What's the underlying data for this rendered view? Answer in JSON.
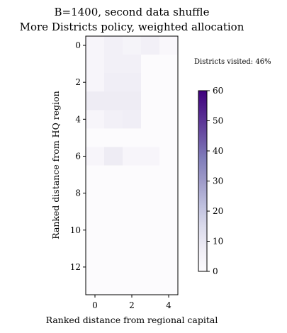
{
  "chart_data": {
    "type": "heatmap",
    "title": "B=1400, second data shuffle",
    "subtitle": "More Districts policy, weighted allocation",
    "xlabel": "Ranked distance from regional capital",
    "ylabel": "Ranked distance from HQ region",
    "x_ticks": [
      0,
      2,
      4
    ],
    "y_ticks": [
      0,
      2,
      4,
      6,
      8,
      10,
      12
    ],
    "n_cols": 5,
    "n_rows": 14,
    "colorbar": {
      "min": 0,
      "max": 60,
      "ticks": [
        0,
        10,
        20,
        30,
        40,
        50,
        60
      ],
      "colormap": "Purples"
    },
    "annotation": "Districts visited: 46%",
    "values": [
      [
        3,
        6,
        4,
        6,
        2
      ],
      [
        3,
        6,
        6,
        0,
        0
      ],
      [
        3,
        7,
        7,
        0,
        0
      ],
      [
        8,
        8,
        8,
        0,
        0
      ],
      [
        3,
        6,
        7,
        0,
        0
      ],
      [
        0,
        0,
        0,
        0,
        0
      ],
      [
        3,
        8,
        3,
        3,
        0
      ],
      [
        0,
        0,
        0,
        0,
        0
      ],
      [
        0,
        0,
        0,
        0,
        0
      ],
      [
        0,
        0,
        0,
        0,
        0
      ],
      [
        0,
        0,
        0,
        0,
        0
      ],
      [
        0,
        0,
        0,
        0,
        0
      ],
      [
        0,
        0,
        0,
        0,
        0
      ],
      [
        0,
        0,
        0,
        0,
        0
      ]
    ]
  }
}
